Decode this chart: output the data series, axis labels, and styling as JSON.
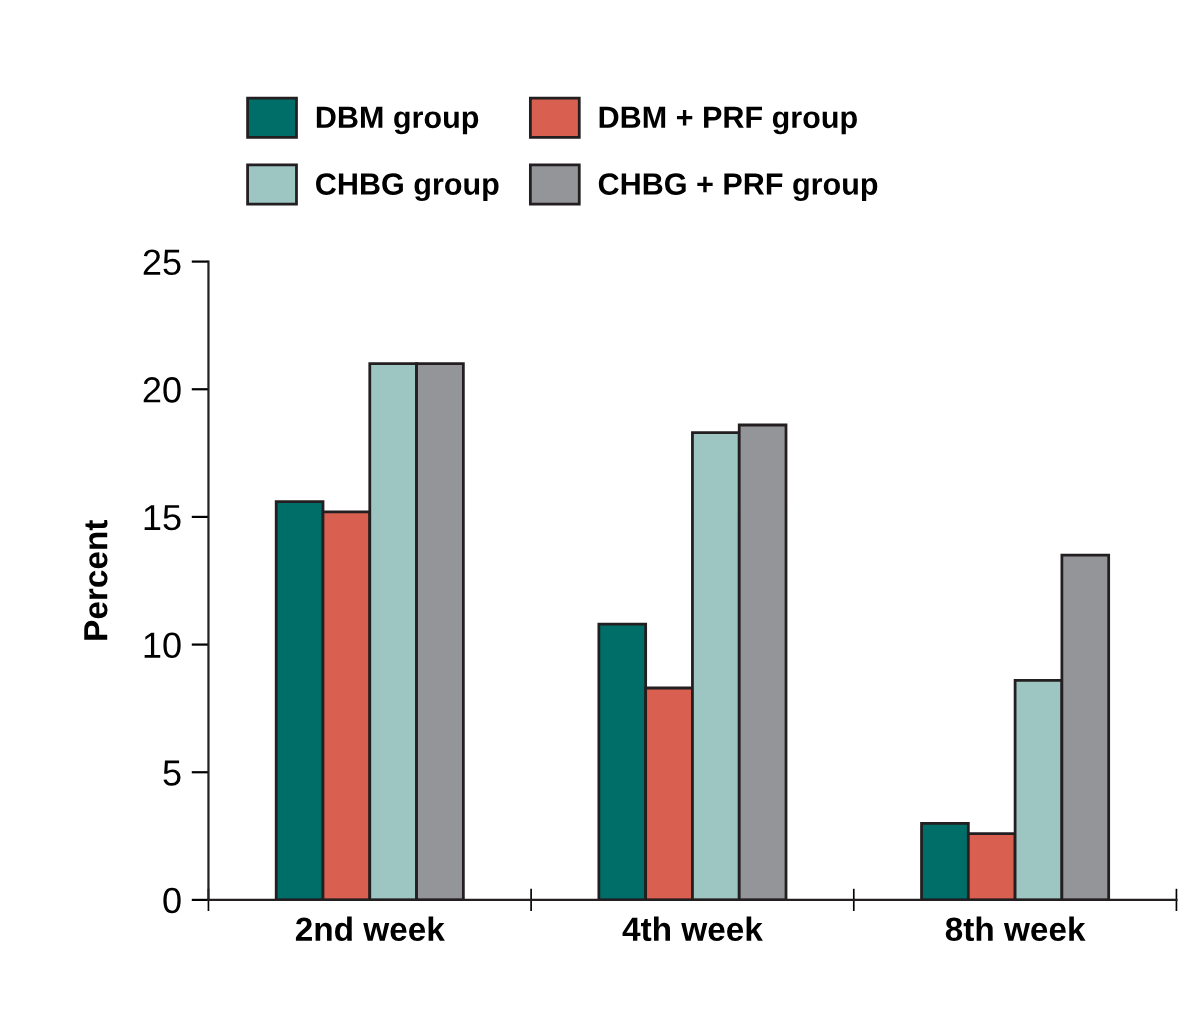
{
  "chart_data": {
    "type": "bar",
    "ylabel": "Percent",
    "categories": [
      "2nd week",
      "4th week",
      "8th week"
    ],
    "series": [
      {
        "name": "DBM group",
        "color": "#006e68",
        "values": [
          15.6,
          10.8,
          3.0
        ]
      },
      {
        "name": "DBM + PRF group",
        "color": "#d96050",
        "values": [
          15.2,
          8.3,
          2.6
        ]
      },
      {
        "name": "CHBG group",
        "color": "#9dc6c3",
        "values": [
          21.0,
          18.3,
          8.6
        ]
      },
      {
        "name": "CHBG + PRF group",
        "color": "#949599",
        "values": [
          21.0,
          18.6,
          13.5
        ]
      }
    ],
    "ylim": [
      0,
      25
    ],
    "yticks": [
      0,
      5,
      10,
      15,
      20,
      25
    ],
    "grid": false,
    "legend": "top"
  }
}
